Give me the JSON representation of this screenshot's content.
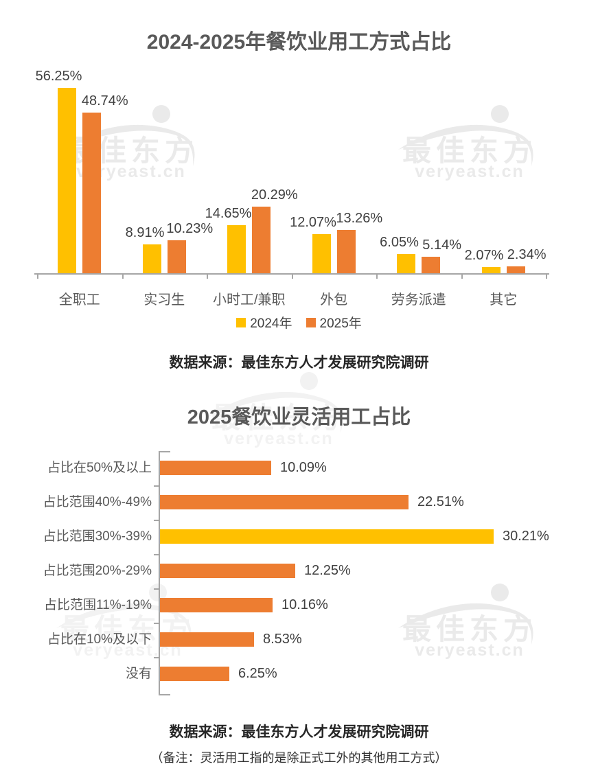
{
  "watermark": {
    "brand": "最佳东方",
    "domain": "veryeast.cn"
  },
  "colors": {
    "series_2024_yellow": "#FFC000",
    "series_2025_orange": "#ED7D31",
    "highlight_yellow": "#FFC000",
    "axis_gray": "#A6A6A6",
    "title_gray": "#595959",
    "value_label_gray": "#404040",
    "source_text_dark": "#262626"
  },
  "chart1": {
    "source": "数据来源：最佳东方人才发展研究院调研"
  },
  "chart2": {
    "source": "数据来源：最佳东方人才发展研究院调研",
    "note": "（备注：灵活用工指的是除正式工外的其他用工方式）"
  },
  "chart_data": [
    {
      "type": "bar",
      "orientation": "vertical",
      "title": "2024-2025年餐饮业用工方式占比",
      "categories": [
        "全职工",
        "实习生",
        "小时工/兼职",
        "外包",
        "劳务派遣",
        "其它"
      ],
      "series": [
        {
          "name": "2024年",
          "color": "#FFC000",
          "values": [
            56.25,
            8.91,
            14.65,
            12.07,
            6.05,
            2.07
          ]
        },
        {
          "name": "2025年",
          "color": "#ED7D31",
          "values": [
            48.74,
            10.23,
            20.29,
            13.26,
            5.14,
            2.34
          ]
        }
      ],
      "value_suffix": "%",
      "ylim": [
        0,
        60
      ],
      "grid": false,
      "legend_position": "bottom"
    },
    {
      "type": "bar",
      "orientation": "horizontal",
      "title": "2025餐饮业灵活用工占比",
      "categories": [
        "占比在50%及以上",
        "占比范围40%-49%",
        "占比范围30%-39%",
        "占比范围20%-29%",
        "占比范围11%-19%",
        "占比在10%及以下",
        "没有"
      ],
      "values": [
        10.09,
        22.51,
        30.21,
        12.25,
        10.16,
        8.53,
        6.25
      ],
      "bar_colors": [
        "#ED7D31",
        "#ED7D31",
        "#FFC000",
        "#ED7D31",
        "#ED7D31",
        "#ED7D31",
        "#ED7D31"
      ],
      "value_suffix": "%",
      "xlim": [
        0,
        32
      ],
      "grid": false
    }
  ]
}
